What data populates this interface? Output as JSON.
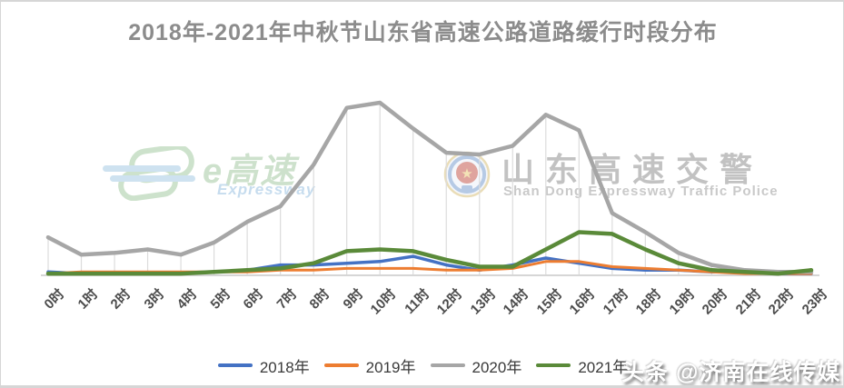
{
  "title": "2018年-2021年中秋节山东省高速公路道路缓行时段分布",
  "watermarks": {
    "egaosu": {
      "text_main": "e高速",
      "text_sub": "Expressway"
    },
    "police": {
      "text_main": "山东高速交警",
      "text_sub": "Shan Dong Expressway Traffic Police"
    },
    "toutiao": {
      "text": "头条 @济南在线传媒"
    }
  },
  "colors": {
    "s2018": "#4472C4",
    "s2019": "#ED7D31",
    "s2020": "#A6A6A6",
    "s2021": "#5A8A39",
    "gridline": "#DCDCDC",
    "axis": "#D6D6D6",
    "title_gray": "#8C8C8C"
  },
  "chart_data": {
    "type": "line",
    "title": "2018年-2021年中秋节山东省高速公路道路缓行时段分布",
    "xlabel": "",
    "ylabel": "",
    "ylim": [
      0,
      105
    ],
    "grid": "vertical drop lines from top series to x-axis, no y-axis labels",
    "legend_position": "bottom",
    "categories": [
      "0时",
      "1时",
      "2时",
      "3时",
      "4时",
      "5时",
      "6时",
      "7时",
      "8时",
      "9时",
      "10时",
      "11时",
      "12时",
      "13时",
      "14时",
      "15时",
      "16时",
      "17时",
      "18时",
      "19时",
      "20时",
      "21时",
      "22时",
      "23时"
    ],
    "series": [
      {
        "name": "2018年",
        "color": "#4472C4",
        "values": [
          2,
          1,
          1,
          1,
          1,
          2,
          3,
          6,
          6,
          7,
          8,
          11,
          6,
          3,
          6,
          10,
          7,
          4,
          3,
          3,
          2,
          2,
          1,
          1
        ]
      },
      {
        "name": "2019年",
        "color": "#ED7D31",
        "values": [
          1,
          2,
          2,
          2,
          2,
          2,
          2,
          3,
          3,
          4,
          4,
          4,
          3,
          3,
          4,
          8,
          8,
          5,
          4,
          3,
          2,
          1,
          1,
          1
        ]
      },
      {
        "name": "2020年",
        "color": "#A6A6A6",
        "values": [
          22,
          12,
          13,
          15,
          12,
          19,
          31,
          40,
          64,
          97,
          100,
          85,
          71,
          70,
          75,
          93,
          84,
          36,
          25,
          13,
          6,
          3,
          2,
          2
        ]
      },
      {
        "name": "2021年",
        "color": "#5A8A39",
        "values": [
          1,
          1,
          1,
          1,
          1,
          2,
          3,
          4,
          7,
          14,
          15,
          14,
          9,
          5,
          5,
          15,
          25,
          24,
          15,
          7,
          3,
          2,
          1,
          3
        ]
      }
    ]
  }
}
